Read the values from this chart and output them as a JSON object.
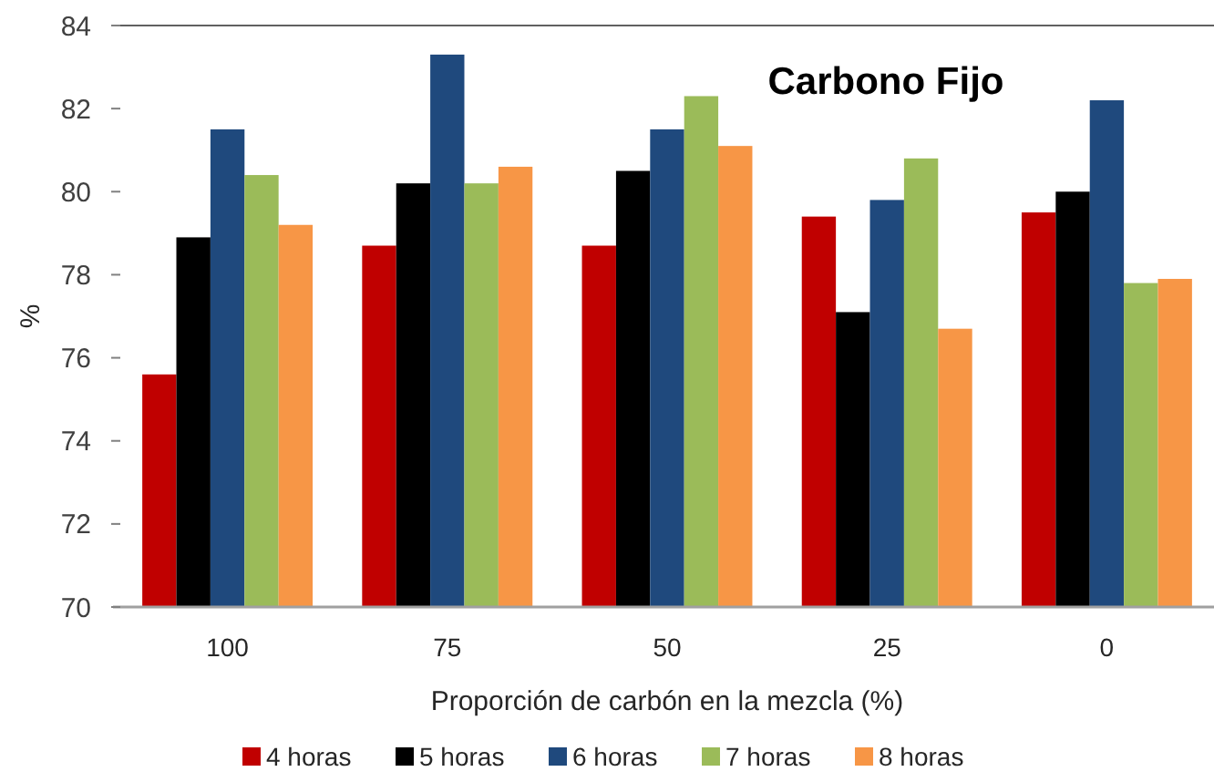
{
  "chart_data": {
    "type": "bar",
    "title": "Carbono Fijo",
    "xlabel": "Proporción de carbón en la mezcla (%)",
    "ylabel": "%",
    "categories": [
      "100",
      "75",
      "50",
      "25",
      "0"
    ],
    "series": [
      {
        "name": "4 horas",
        "color": "#c00000",
        "values": [
          75.6,
          78.7,
          78.7,
          79.4,
          79.5
        ]
      },
      {
        "name": "5 horas",
        "color": "#000000",
        "values": [
          78.9,
          80.2,
          80.5,
          77.1,
          80.0
        ]
      },
      {
        "name": "6 horas",
        "color": "#1f497d",
        "values": [
          81.5,
          83.3,
          81.5,
          79.8,
          82.2
        ]
      },
      {
        "name": "7 horas",
        "color": "#9bbb59",
        "values": [
          80.4,
          80.2,
          82.3,
          80.8,
          77.8
        ]
      },
      {
        "name": "8 horas",
        "color": "#f79646",
        "values": [
          79.2,
          80.6,
          81.1,
          76.7,
          77.9
        ]
      }
    ],
    "ylim": [
      70,
      84
    ],
    "yticks": [
      70,
      72,
      74,
      76,
      78,
      80,
      82,
      84
    ],
    "legend": "bottom"
  }
}
